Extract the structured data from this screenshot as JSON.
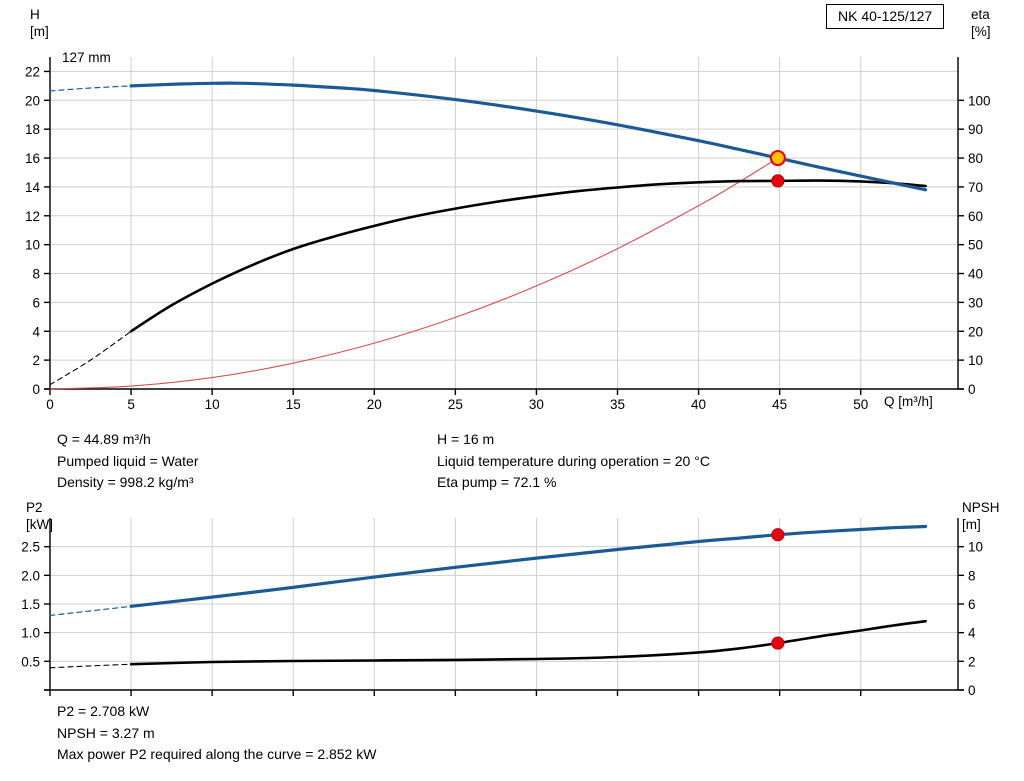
{
  "chart_data": [
    {
      "type": "line",
      "title_box": "NK 40-125/127",
      "annotation": "127 mm",
      "x_axis": {
        "label": "Q [m³/h]",
        "min": 0,
        "max": 56,
        "ticks": [
          0,
          5,
          10,
          15,
          20,
          25,
          30,
          35,
          40,
          45,
          50
        ],
        "tick_labels": [
          "0",
          "5",
          "10",
          "15",
          "20",
          "25",
          "30",
          "35",
          "40",
          "45",
          "50"
        ],
        "show_labels": true
      },
      "left_axis": {
        "label": "H",
        "unit": "[m]",
        "min": 0,
        "max": 23,
        "ticks": [
          0,
          2,
          4,
          6,
          8,
          10,
          12,
          14,
          16,
          18,
          20,
          22
        ],
        "tick_labels": [
          "0",
          "2",
          "4",
          "6",
          "8",
          "10",
          "12",
          "14",
          "16",
          "18",
          "20",
          "22"
        ]
      },
      "right_axis": {
        "label": "eta",
        "unit": "[%]",
        "min": 0,
        "max": 115,
        "ticks": [
          0,
          10,
          20,
          30,
          40,
          50,
          60,
          70,
          80,
          90,
          100
        ],
        "tick_labels": [
          "0",
          "10",
          "20",
          "30",
          "40",
          "50",
          "60",
          "70",
          "80",
          "90",
          "100"
        ]
      },
      "series": [
        {
          "name": "head-curve-dashed",
          "axis": "left",
          "color": "#1c5a96",
          "width": 1.2,
          "dash": "5,4",
          "points": [
            [
              0,
              20.65
            ],
            [
              2.5,
              20.85
            ],
            [
              5,
              21.0
            ]
          ]
        },
        {
          "name": "system-curve",
          "axis": "left",
          "color": "#d05050",
          "width": 1.1,
          "dash": null,
          "points": [
            [
              0,
              0
            ],
            [
              5,
              0.2
            ],
            [
              10,
              0.79
            ],
            [
              15,
              1.79
            ],
            [
              20,
              3.18
            ],
            [
              25,
              4.96
            ],
            [
              30,
              7.14
            ],
            [
              35,
              9.72
            ],
            [
              40,
              12.7
            ],
            [
              42.5,
              14.34
            ],
            [
              44.89,
              16.0
            ]
          ]
        },
        {
          "name": "eta-curve-dashed",
          "axis": "right",
          "color": "#000000",
          "width": 1.1,
          "dash": "5,4",
          "points": [
            [
              0,
              1.5
            ],
            [
              2.5,
              10
            ],
            [
              5,
              20
            ]
          ]
        },
        {
          "name": "eta-curve",
          "axis": "right",
          "color": "#000000",
          "width": 2.6,
          "dash": null,
          "points": [
            [
              5,
              20
            ],
            [
              7.5,
              29
            ],
            [
              10,
              36.5
            ],
            [
              12.5,
              43
            ],
            [
              15,
              48.5
            ],
            [
              17.5,
              52.8
            ],
            [
              20,
              56.5
            ],
            [
              22.5,
              59.8
            ],
            [
              25,
              62.5
            ],
            [
              27.5,
              64.8
            ],
            [
              30,
              66.8
            ],
            [
              32.5,
              68.5
            ],
            [
              35,
              69.8
            ],
            [
              37.5,
              70.9
            ],
            [
              40,
              71.6
            ],
            [
              42.5,
              72.0
            ],
            [
              44.89,
              72.1
            ],
            [
              47.5,
              72.2
            ],
            [
              50,
              71.9
            ],
            [
              52,
              71.3
            ],
            [
              54,
              70.3
            ]
          ]
        },
        {
          "name": "head-curve",
          "axis": "left",
          "color": "#1c5a96",
          "width": 3.2,
          "dash": null,
          "points": [
            [
              5,
              21.0
            ],
            [
              8,
              21.13
            ],
            [
              10,
              21.18
            ],
            [
              12,
              21.18
            ],
            [
              15,
              21.05
            ],
            [
              18,
              20.85
            ],
            [
              20,
              20.68
            ],
            [
              25,
              20.05
            ],
            [
              30,
              19.25
            ],
            [
              35,
              18.3
            ],
            [
              40,
              17.2
            ],
            [
              42.5,
              16.6
            ],
            [
              44.89,
              16.0
            ],
            [
              47.5,
              15.35
            ],
            [
              50,
              14.75
            ],
            [
              52,
              14.28
            ],
            [
              54,
              13.8
            ]
          ]
        }
      ],
      "markers": [
        {
          "name": "duty-point-head",
          "x": 44.89,
          "y": 16.0,
          "axis": "left",
          "fill": "#ffc000",
          "stroke": "#e30613",
          "r": 7,
          "stroke_width": 2.2
        },
        {
          "name": "duty-point-eta",
          "x": 44.89,
          "y": 72.1,
          "axis": "right",
          "fill": "#e30613",
          "stroke": "#c00000",
          "r": 6,
          "stroke_width": 1.2
        }
      ]
    },
    {
      "type": "line",
      "x_axis": {
        "label": "",
        "min": 0,
        "max": 56,
        "ticks": [
          0,
          5,
          10,
          15,
          20,
          25,
          30,
          35,
          40,
          45,
          50
        ],
        "tick_labels": [
          "",
          "",
          "",
          "",
          "",
          "",
          "",
          "",
          "",
          "",
          ""
        ],
        "show_labels": false
      },
      "left_axis": {
        "label": "P2",
        "unit": "[kW]",
        "min": 0,
        "max": 3,
        "ticks": [
          0,
          0.5,
          1.0,
          1.5,
          2.0,
          2.5
        ],
        "tick_labels": [
          "",
          "0.5",
          "1.0",
          "1.5",
          "2.0",
          "2.5"
        ]
      },
      "right_axis": {
        "label": "NPSH",
        "unit": "[m]",
        "min": 0,
        "max": 12,
        "ticks": [
          0,
          2,
          4,
          6,
          8,
          10
        ],
        "tick_labels": [
          "0",
          "2",
          "4",
          "6",
          "8",
          "10"
        ]
      },
      "series": [
        {
          "name": "p2-curve-dashed",
          "axis": "left",
          "color": "#1c5a96",
          "width": 1.2,
          "dash": "5,4",
          "points": [
            [
              0,
              1.3
            ],
            [
              2.5,
              1.38
            ],
            [
              5,
              1.46
            ]
          ]
        },
        {
          "name": "npsh-curve-dashed",
          "axis": "right",
          "color": "#000000",
          "width": 1.1,
          "dash": "5,4",
          "points": [
            [
              0,
              1.55
            ],
            [
              2.5,
              1.68
            ],
            [
              5,
              1.8
            ]
          ]
        },
        {
          "name": "p2-curve",
          "axis": "left",
          "color": "#1c5a96",
          "width": 3.2,
          "dash": null,
          "points": [
            [
              5,
              1.46
            ],
            [
              10,
              1.62
            ],
            [
              15,
              1.79
            ],
            [
              20,
              1.97
            ],
            [
              25,
              2.14
            ],
            [
              30,
              2.3
            ],
            [
              35,
              2.45
            ],
            [
              40,
              2.59
            ],
            [
              42.5,
              2.65
            ],
            [
              44.89,
              2.708
            ],
            [
              47.5,
              2.76
            ],
            [
              50,
              2.8
            ],
            [
              52,
              2.83
            ],
            [
              54,
              2.852
            ]
          ]
        },
        {
          "name": "npsh-curve",
          "axis": "right",
          "color": "#000000",
          "width": 2.6,
          "dash": null,
          "points": [
            [
              5,
              1.8
            ],
            [
              10,
              1.95
            ],
            [
              15,
              2.02
            ],
            [
              20,
              2.06
            ],
            [
              25,
              2.1
            ],
            [
              30,
              2.16
            ],
            [
              35,
              2.3
            ],
            [
              40,
              2.62
            ],
            [
              42.5,
              2.9
            ],
            [
              44.89,
              3.27
            ],
            [
              47.5,
              3.75
            ],
            [
              50,
              4.15
            ],
            [
              52,
              4.5
            ],
            [
              54,
              4.8
            ]
          ]
        }
      ],
      "markers": [
        {
          "name": "duty-point-p2",
          "x": 44.89,
          "y": 2.708,
          "axis": "left",
          "fill": "#e30613",
          "stroke": "#c00000",
          "r": 6,
          "stroke_width": 1.2
        },
        {
          "name": "duty-point-npsh",
          "x": 44.89,
          "y": 3.27,
          "axis": "right",
          "fill": "#e30613",
          "stroke": "#c00000",
          "r": 6,
          "stroke_width": 1.2
        }
      ]
    }
  ],
  "info_top": {
    "left": [
      "Q = 44.89 m³/h",
      "Pumped liquid = Water",
      "Density = 998.2 kg/m³"
    ],
    "right": [
      "H = 16 m",
      "Liquid temperature during operation = 20 °C",
      "Eta pump = 72.1 %"
    ]
  },
  "info_bottom": [
    "P2 = 2.708 kW",
    "NPSH = 3.27 m",
    "Max power P2 required along the curve = 2.852 kW"
  ],
  "colors": {
    "curve_blue": "#1c5a96",
    "curve_black": "#000000",
    "system_red": "#d05050",
    "duty_red": "#e30613",
    "duty_orange": "#ffc000",
    "grid": "#cfcfcf"
  }
}
